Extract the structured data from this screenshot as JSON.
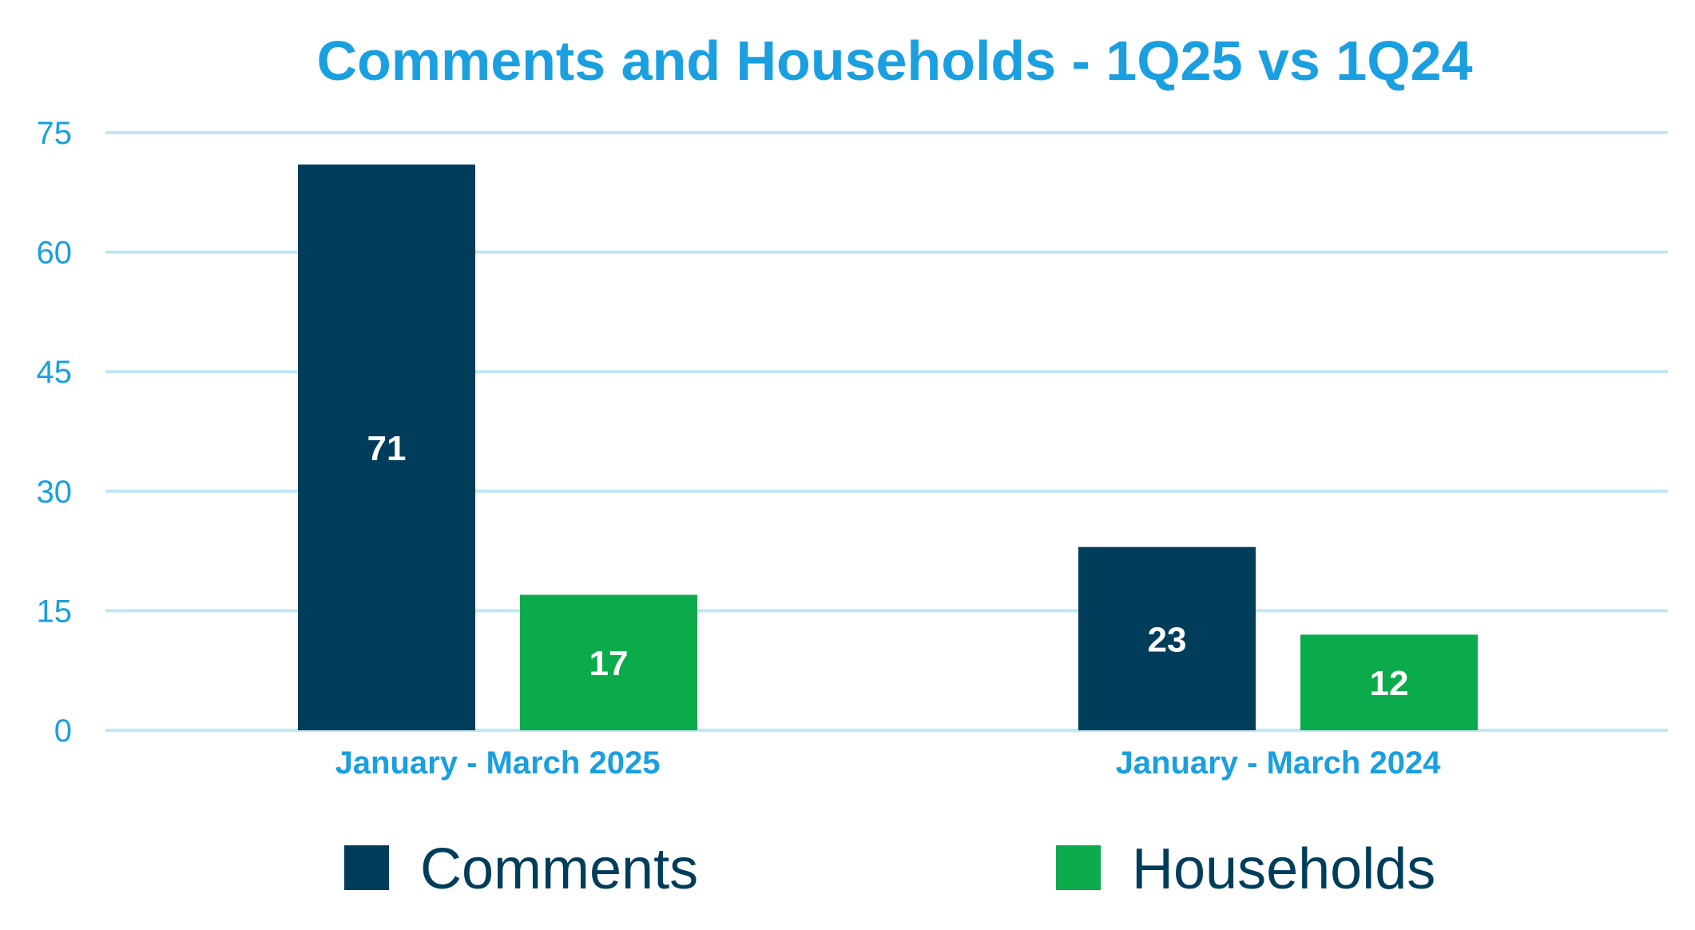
{
  "chart_data": {
    "type": "bar",
    "title": "Comments and Households - 1Q25 vs 1Q24",
    "xlabel": "",
    "ylabel": "",
    "categories": [
      "January - March 2025",
      "January - March 2024"
    ],
    "series": [
      {
        "name": "Comments",
        "values": [
          71,
          23
        ],
        "color": "#003D5B"
      },
      {
        "name": "Households",
        "values": [
          17,
          12
        ],
        "color": "#0BAA4B"
      }
    ],
    "ylim": [
      0,
      75
    ],
    "yticks": [
      0,
      15,
      30,
      45,
      60,
      75
    ],
    "grid": true,
    "legend_position": "bottom",
    "data_labels": true
  },
  "colors": {
    "title": "#1A9FE0",
    "tick": "#1A9FE0",
    "category": "#1A9FE0",
    "gridline": "#BFE6F5",
    "legend_text": "#003D5B"
  }
}
